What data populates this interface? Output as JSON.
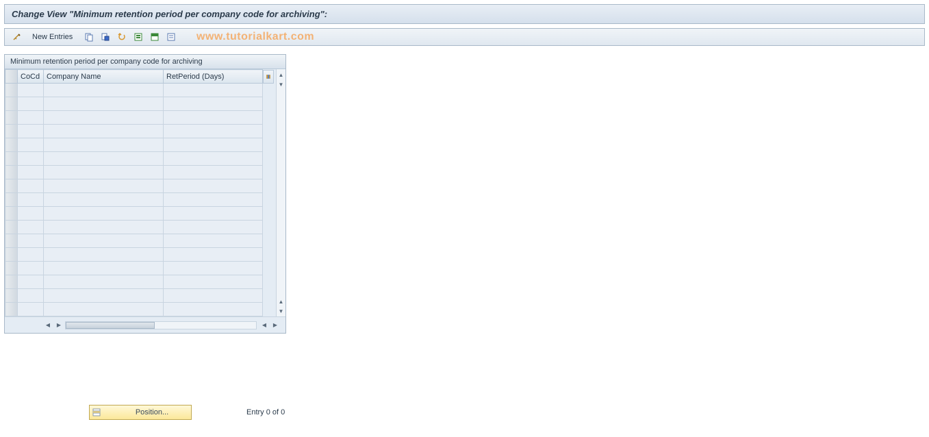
{
  "title": "Change View \"Minimum retention period per company code for archiving\":",
  "toolbar": {
    "new_entries_label": "New Entries",
    "watermark": "www.tutorialkart.com",
    "icons": {
      "wrench": "change-mode-icon",
      "copy": "copy-icon",
      "delete": "delete-icon",
      "undo": "undo-icon",
      "select_all": "select-all-icon",
      "select_block": "select-block-icon",
      "deselect": "deselect-icon"
    }
  },
  "panel": {
    "header": "Minimum retention period per company code for archiving",
    "columns": {
      "cocd": "CoCd",
      "company_name": "Company Name",
      "retperiod": "RetPeriod (Days)"
    },
    "row_count": 17,
    "rows": []
  },
  "footer": {
    "position_label": "Position...",
    "entry_text": "Entry 0 of 0"
  },
  "colors": {
    "title_bg_top": "#e8eef5",
    "title_bg_bottom": "#d5e0ec",
    "border": "#a8b8c8",
    "cell_bg": "#e8eef5",
    "header_bg_top": "#f0f4f8",
    "header_bg_bottom": "#dce6ef",
    "watermark": "#f5a85f",
    "position_bg_top": "#fff8d8",
    "position_bg_bottom": "#fce89a"
  }
}
